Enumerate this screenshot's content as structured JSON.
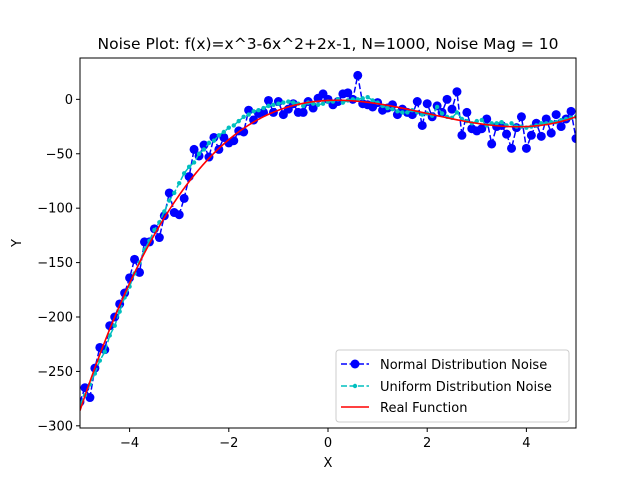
{
  "chart_data": {
    "type": "line",
    "title": "Noise Plot: f(x)=x^3-6x^2+2x-1, N=1000, Noise Mag = 10",
    "xlabel": "X",
    "ylabel": "Y",
    "xlim": [
      -5,
      5
    ],
    "ylim": [
      -302,
      38
    ],
    "x_ticks": [
      -4,
      -2,
      0,
      2,
      4
    ],
    "x_tick_labels": [
      "−4",
      "−2",
      "0",
      "2",
      "4"
    ],
    "y_ticks": [
      0,
      -50,
      -100,
      -150,
      -200,
      -250,
      -300
    ],
    "y_tick_labels": [
      "0",
      "−50",
      "−100",
      "−150",
      "−200",
      "−250",
      "−300"
    ],
    "grid": false,
    "legend_position": "lower right",
    "colors": {
      "normal": "#0000ff",
      "uniform": "#00bfbf",
      "real": "#ff0000"
    },
    "series": [
      {
        "name": "Normal Distribution Noise",
        "style": "dashed line with circle markers",
        "x": [
          -5.0,
          -4.9,
          -4.8,
          -4.7,
          -4.6,
          -4.5,
          -4.4,
          -4.3,
          -4.2,
          -4.1,
          -4.0,
          -3.9,
          -3.8,
          -3.7,
          -3.6,
          -3.5,
          -3.4,
          -3.3,
          -3.2,
          -3.1,
          -3.0,
          -2.9,
          -2.8,
          -2.7,
          -2.6,
          -2.5,
          -2.4,
          -2.3,
          -2.2,
          -2.1,
          -2.0,
          -1.9,
          -1.8,
          -1.7,
          -1.6,
          -1.5,
          -1.4,
          -1.3,
          -1.2,
          -1.1,
          -1.0,
          -0.9,
          -0.8,
          -0.7,
          -0.6,
          -0.5,
          -0.4,
          -0.3,
          -0.2,
          -0.1,
          0.0,
          0.1,
          0.2,
          0.3,
          0.4,
          0.5,
          0.6,
          0.7,
          0.8,
          0.9,
          1.0,
          1.1,
          1.2,
          1.3,
          1.4,
          1.5,
          1.6,
          1.7,
          1.8,
          1.9,
          2.0,
          2.1,
          2.2,
          2.3,
          2.4,
          2.5,
          2.6,
          2.7,
          2.8,
          2.9,
          3.0,
          3.1,
          3.2,
          3.3,
          3.4,
          3.5,
          3.6,
          3.7,
          3.8,
          3.9,
          4.0,
          4.1,
          4.2,
          4.3,
          4.4,
          4.5,
          4.6,
          4.7,
          4.8,
          4.9,
          5.0
        ],
        "y": [
          -278,
          -265,
          -274,
          -247,
          -228,
          -230,
          -208,
          -200,
          -188,
          -178,
          -164,
          -147,
          -159,
          -131,
          -131,
          -119,
          -127,
          -107,
          -86,
          -104,
          -106,
          -91,
          -71,
          -46,
          -52,
          -42,
          -53,
          -35,
          -46,
          -35,
          -40,
          -38,
          -29,
          -30,
          -10,
          -19,
          -13,
          -12,
          -1,
          -12,
          -2,
          -14,
          -9,
          -4,
          -12,
          -12,
          -2,
          -8,
          1,
          5,
          0,
          -5,
          -2,
          5,
          6,
          0,
          22,
          -4,
          -5,
          -7,
          -3,
          -10,
          -8,
          -5,
          -14,
          -9,
          -12,
          -14,
          -2,
          -24,
          -4,
          -16,
          -6,
          -12,
          0,
          -9,
          7,
          -33,
          -12,
          -27,
          -29,
          -27,
          -18,
          -41,
          -25,
          -24,
          -32,
          -45,
          -26,
          -16,
          -45,
          -33,
          -22,
          -34,
          -18,
          -31,
          -14,
          -25,
          -18,
          -11,
          -36
        ]
      },
      {
        "name": "Uniform Distribution Noise",
        "style": "dashed line with small point markers",
        "x": [
          -5.0,
          -4.9,
          -4.8,
          -4.7,
          -4.6,
          -4.5,
          -4.4,
          -4.3,
          -4.2,
          -4.1,
          -4.0,
          -3.9,
          -3.8,
          -3.7,
          -3.6,
          -3.5,
          -3.4,
          -3.3,
          -3.2,
          -3.1,
          -3.0,
          -2.9,
          -2.8,
          -2.7,
          -2.6,
          -2.5,
          -2.4,
          -2.3,
          -2.2,
          -2.1,
          -2.0,
          -1.9,
          -1.8,
          -1.7,
          -1.6,
          -1.5,
          -1.4,
          -1.3,
          -1.2,
          -1.1,
          -1.0,
          -0.9,
          -0.8,
          -0.7,
          -0.6,
          -0.5,
          -0.4,
          -0.3,
          -0.2,
          -0.1,
          0.0,
          0.1,
          0.2,
          0.3,
          0.4,
          0.5,
          0.6,
          0.7,
          0.8,
          0.9,
          1.0,
          1.1,
          1.2,
          1.3,
          1.4,
          1.5,
          1.6,
          1.7,
          1.8,
          1.9,
          2.0,
          2.1,
          2.2,
          2.3,
          2.4,
          2.5,
          2.6,
          2.7,
          2.8,
          2.9,
          3.0,
          3.1,
          3.2,
          3.3,
          3.4,
          3.5,
          3.6,
          3.7,
          3.8,
          3.9,
          4.0,
          4.1,
          4.2,
          4.3,
          4.4,
          4.5,
          4.6,
          4.7,
          4.8,
          4.9,
          5.0
        ],
        "y": [
          -280,
          -272,
          -262,
          -252,
          -240,
          -232,
          -217,
          -208,
          -195,
          -182,
          -172,
          -160,
          -150,
          -138,
          -130,
          -120,
          -113,
          -103,
          -93,
          -86,
          -77,
          -68,
          -62,
          -58,
          -50,
          -46,
          -40,
          -38,
          -33,
          -30,
          -26,
          -24,
          -20,
          -16,
          -14,
          -11,
          -10,
          -8,
          -6,
          -5,
          -4,
          -3,
          -2,
          -3,
          -4,
          -6,
          -3,
          -4,
          -5,
          -4,
          -2,
          -2,
          0,
          -3,
          -1,
          0,
          0,
          1,
          2,
          -1,
          -3,
          -6,
          -8,
          -9,
          -11,
          -12,
          -12,
          -10,
          -12,
          -14,
          -13,
          -15,
          -7,
          -13,
          -16,
          -17,
          -12,
          -18,
          -20,
          -22,
          -20,
          -19,
          -24,
          -22,
          -22,
          -21,
          -24,
          -22,
          -25,
          -25,
          -26,
          -25,
          -24,
          -22,
          -22,
          -21,
          -21,
          -19,
          -18,
          -17,
          -16
        ]
      },
      {
        "name": "Real Function",
        "style": "solid line",
        "function": "x^3-6x^2+2x-1"
      }
    ]
  }
}
